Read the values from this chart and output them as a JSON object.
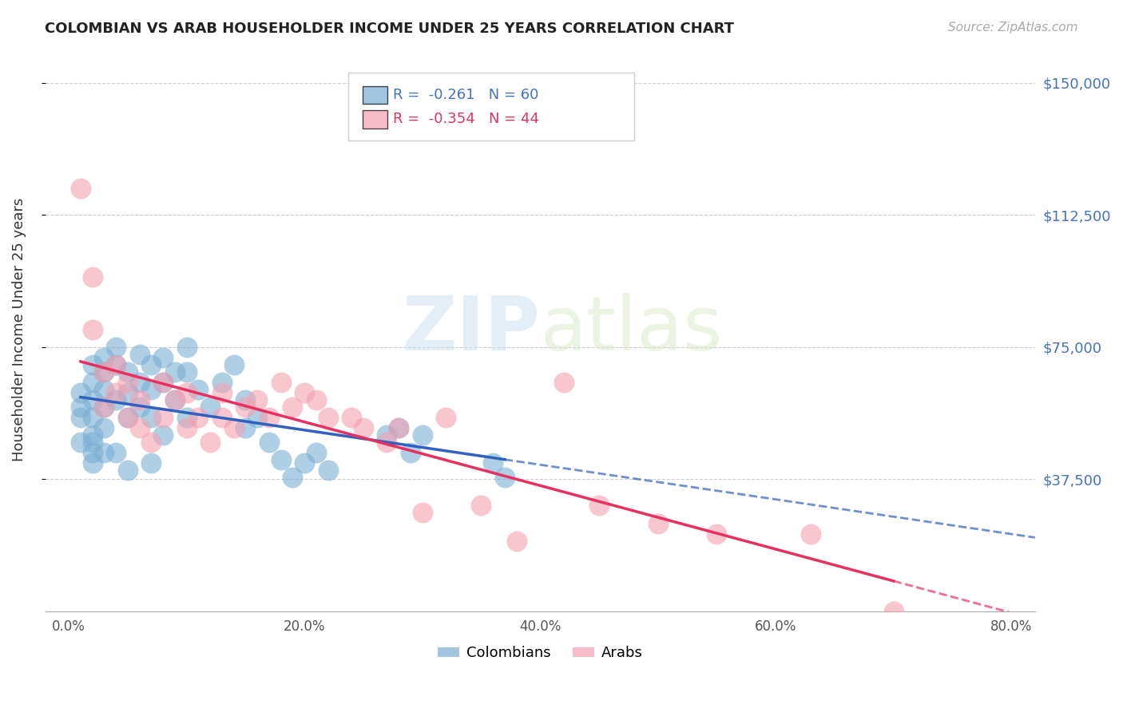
{
  "title": "COLOMBIAN VS ARAB HOUSEHOLDER INCOME UNDER 25 YEARS CORRELATION CHART",
  "source": "Source: ZipAtlas.com",
  "ylabel": "Householder Income Under 25 years",
  "xlabel_ticks": [
    "0.0%",
    "20.0%",
    "40.0%",
    "60.0%",
    "80.0%"
  ],
  "xlabel_vals": [
    0.0,
    0.2,
    0.4,
    0.6,
    0.8
  ],
  "ytick_labels": [
    "$37,500",
    "$75,000",
    "$112,500",
    "$150,000"
  ],
  "ytick_vals": [
    37500,
    75000,
    112500,
    150000
  ],
  "ylim": [
    0,
    160000
  ],
  "xlim": [
    -0.02,
    0.82
  ],
  "watermark_zip": "ZIP",
  "watermark_atlas": "atlas",
  "legend_colombians": "Colombians",
  "legend_arabs": "Arabs",
  "R_colombians": "-0.261",
  "N_colombians": "60",
  "R_arabs": "-0.354",
  "N_arabs": "44",
  "colombian_color": "#7bafd4",
  "arab_color": "#f4a0b0",
  "colombian_line_color": "#3060c0",
  "arab_line_color": "#e83060",
  "colombian_x": [
    0.01,
    0.01,
    0.01,
    0.01,
    0.02,
    0.02,
    0.02,
    0.02,
    0.02,
    0.02,
    0.02,
    0.02,
    0.03,
    0.03,
    0.03,
    0.03,
    0.03,
    0.03,
    0.04,
    0.04,
    0.04,
    0.04,
    0.05,
    0.05,
    0.05,
    0.05,
    0.06,
    0.06,
    0.06,
    0.07,
    0.07,
    0.07,
    0.07,
    0.08,
    0.08,
    0.08,
    0.09,
    0.09,
    0.1,
    0.1,
    0.1,
    0.11,
    0.12,
    0.13,
    0.14,
    0.15,
    0.15,
    0.16,
    0.17,
    0.18,
    0.19,
    0.2,
    0.21,
    0.22,
    0.27,
    0.28,
    0.29,
    0.3,
    0.36,
    0.37
  ],
  "colombian_y": [
    58000,
    62000,
    55000,
    48000,
    70000,
    65000,
    60000,
    55000,
    50000,
    48000,
    45000,
    42000,
    72000,
    68000,
    63000,
    58000,
    52000,
    45000,
    75000,
    70000,
    60000,
    45000,
    68000,
    62000,
    55000,
    40000,
    73000,
    65000,
    58000,
    70000,
    63000,
    55000,
    42000,
    72000,
    65000,
    50000,
    68000,
    60000,
    75000,
    68000,
    55000,
    63000,
    58000,
    65000,
    70000,
    60000,
    52000,
    55000,
    48000,
    43000,
    38000,
    42000,
    45000,
    40000,
    50000,
    52000,
    45000,
    50000,
    42000,
    38000
  ],
  "arab_x": [
    0.01,
    0.02,
    0.02,
    0.03,
    0.03,
    0.04,
    0.04,
    0.05,
    0.05,
    0.06,
    0.06,
    0.07,
    0.08,
    0.08,
    0.09,
    0.1,
    0.1,
    0.11,
    0.12,
    0.13,
    0.13,
    0.14,
    0.15,
    0.16,
    0.17,
    0.18,
    0.19,
    0.2,
    0.21,
    0.22,
    0.24,
    0.25,
    0.27,
    0.28,
    0.3,
    0.32,
    0.35,
    0.38,
    0.42,
    0.45,
    0.5,
    0.55,
    0.63,
    0.7
  ],
  "arab_y": [
    120000,
    95000,
    80000,
    68000,
    58000,
    70000,
    62000,
    65000,
    55000,
    60000,
    52000,
    48000,
    65000,
    55000,
    60000,
    62000,
    52000,
    55000,
    48000,
    62000,
    55000,
    52000,
    58000,
    60000,
    55000,
    65000,
    58000,
    62000,
    60000,
    55000,
    55000,
    52000,
    48000,
    52000,
    28000,
    55000,
    30000,
    20000,
    65000,
    30000,
    25000,
    22000,
    22000,
    0
  ]
}
